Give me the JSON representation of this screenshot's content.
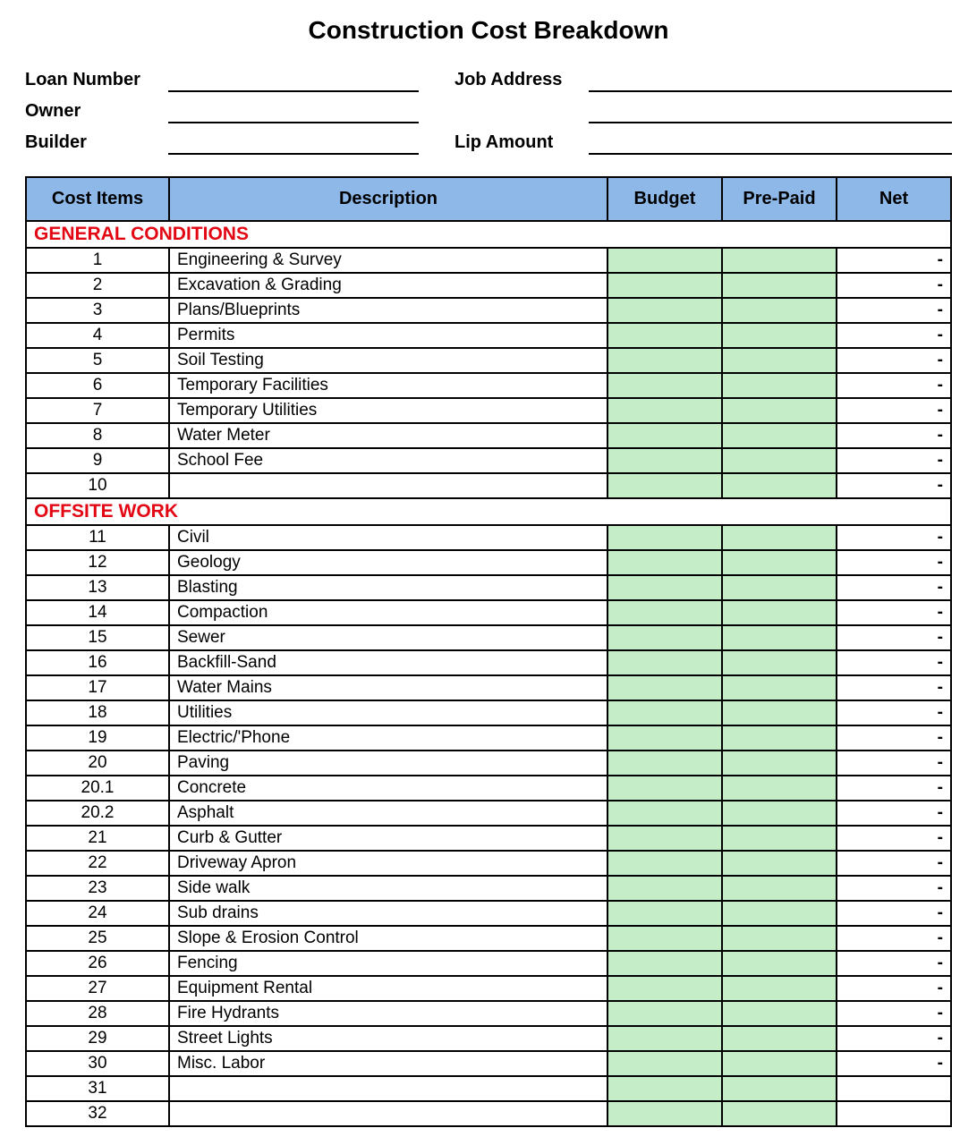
{
  "title": "Construction Cost Breakdown",
  "form": {
    "loan_number_label": "Loan Number",
    "owner_label": "Owner",
    "builder_label": "Builder",
    "job_address_label": "Job Address",
    "lip_amount_label": "Lip Amount"
  },
  "columns": {
    "cost_items": "Cost  Items",
    "description": "Description",
    "budget": "Budget",
    "prepaid": "Pre-Paid",
    "net": "Net"
  },
  "styling": {
    "header_bg": "#8db8e8",
    "input_cell_bg": "#c5eec8",
    "section_color": "#e30613",
    "border_color": "#000000",
    "font_family": "Arial",
    "title_fontsize": 28,
    "header_fontsize": 20,
    "body_fontsize": 19
  },
  "sections": [
    {
      "label": "GENERAL CONDITIONS",
      "rows": [
        {
          "item": "1",
          "desc": "Engineering & Survey",
          "net": "-"
        },
        {
          "item": "2",
          "desc": "Excavation & Grading",
          "net": "-"
        },
        {
          "item": "3",
          "desc": "Plans/Blueprints",
          "net": "-"
        },
        {
          "item": "4",
          "desc": "Permits",
          "net": "-"
        },
        {
          "item": "5",
          "desc": "Soil Testing",
          "net": "-"
        },
        {
          "item": "6",
          "desc": "Temporary Facilities",
          "net": "-"
        },
        {
          "item": "7",
          "desc": "Temporary Utilities",
          "net": "-"
        },
        {
          "item": "8",
          "desc": "Water Meter",
          "net": "-"
        },
        {
          "item": "9",
          "desc": "School Fee",
          "net": "-"
        },
        {
          "item": "10",
          "desc": "",
          "net": "-"
        }
      ]
    },
    {
      "label": "OFFSITE WORK",
      "rows": [
        {
          "item": "11",
          "desc": "Civil",
          "net": "-"
        },
        {
          "item": "12",
          "desc": "Geology",
          "net": "-"
        },
        {
          "item": "13",
          "desc": "Blasting",
          "net": "-"
        },
        {
          "item": "14",
          "desc": "Compaction",
          "net": "-"
        },
        {
          "item": "15",
          "desc": "Sewer",
          "net": "-"
        },
        {
          "item": "16",
          "desc": "Backfill-Sand",
          "net": "-"
        },
        {
          "item": "17",
          "desc": "Water Mains",
          "net": "-"
        },
        {
          "item": "18",
          "desc": "Utilities",
          "net": "-"
        },
        {
          "item": "19",
          "desc": "Electric/'Phone",
          "net": "-"
        },
        {
          "item": "20",
          "desc": "Paving",
          "net": "-"
        },
        {
          "item": "20.1",
          "desc": "Concrete",
          "net": "-"
        },
        {
          "item": "20.2",
          "desc": "Asphalt",
          "net": "-"
        },
        {
          "item": "21",
          "desc": "Curb & Gutter",
          "net": "-"
        },
        {
          "item": "22",
          "desc": "Driveway Apron",
          "net": "-"
        },
        {
          "item": "23",
          "desc": "Side walk",
          "net": "-"
        },
        {
          "item": "24",
          "desc": "Sub drains",
          "net": "-"
        },
        {
          "item": "25",
          "desc": "Slope & Erosion Control",
          "net": "-"
        },
        {
          "item": "26",
          "desc": "Fencing",
          "net": "-"
        },
        {
          "item": "27",
          "desc": "Equipment Rental",
          "net": "-"
        },
        {
          "item": "28",
          "desc": "Fire Hydrants",
          "net": "-"
        },
        {
          "item": "29",
          "desc": "Street Lights",
          "net": "-"
        },
        {
          "item": "30",
          "desc": "Misc. Labor",
          "net": "-"
        },
        {
          "item": "31",
          "desc": "",
          "net": ""
        },
        {
          "item": "32",
          "desc": "",
          "net": ""
        }
      ]
    }
  ]
}
